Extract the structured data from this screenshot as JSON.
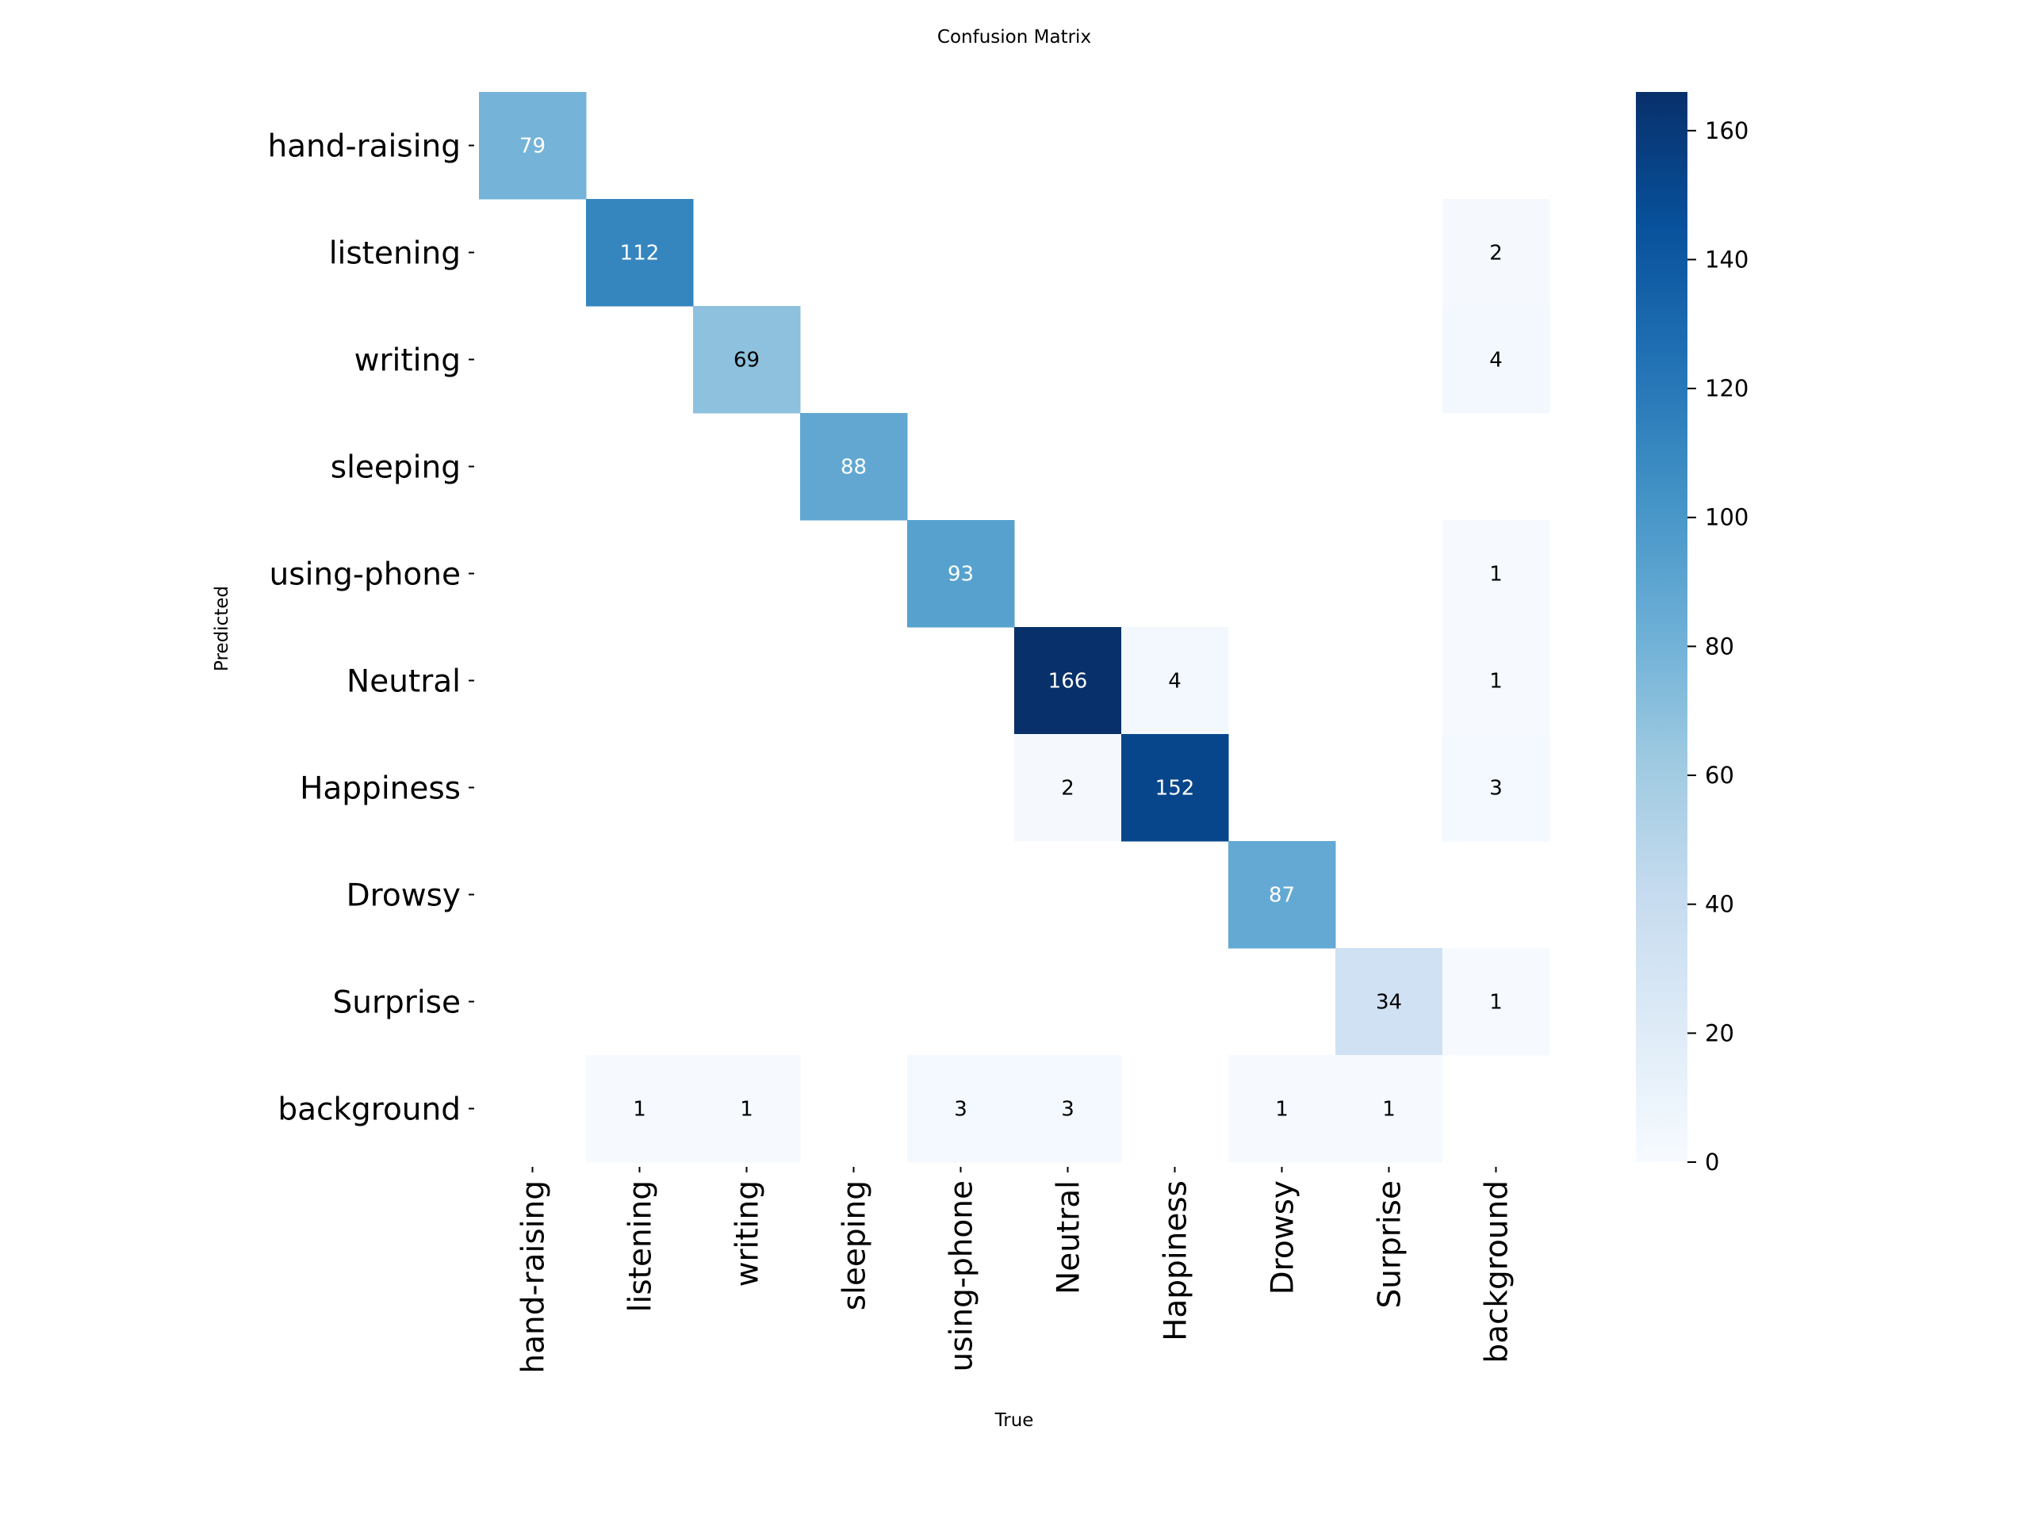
{
  "chart_data": {
    "type": "heatmap",
    "title": "Confusion Matrix",
    "xlabel": "True",
    "ylabel": "Predicted",
    "row_labels": [
      "hand-raising",
      "listening",
      "writing",
      "sleeping",
      "using-phone",
      "Neutral",
      "Happiness",
      "Drowsy",
      "Surprise",
      "background"
    ],
    "col_labels": [
      "hand-raising",
      "listening",
      "writing",
      "sleeping",
      "using-phone",
      "Neutral",
      "Happiness",
      "Drowsy",
      "Surprise",
      "background"
    ],
    "matrix": [
      [
        79,
        0,
        0,
        0,
        0,
        0,
        0,
        0,
        0,
        0
      ],
      [
        0,
        112,
        0,
        0,
        0,
        0,
        0,
        0,
        0,
        2
      ],
      [
        0,
        0,
        69,
        0,
        0,
        0,
        0,
        0,
        0,
        4
      ],
      [
        0,
        0,
        0,
        88,
        0,
        0,
        0,
        0,
        0,
        0
      ],
      [
        0,
        0,
        0,
        0,
        93,
        0,
        0,
        0,
        0,
        1
      ],
      [
        0,
        0,
        0,
        0,
        0,
        166,
        4,
        0,
        0,
        1
      ],
      [
        0,
        0,
        0,
        0,
        0,
        2,
        152,
        0,
        0,
        3
      ],
      [
        0,
        0,
        0,
        0,
        0,
        0,
        0,
        87,
        0,
        0
      ],
      [
        0,
        0,
        0,
        0,
        0,
        0,
        0,
        0,
        34,
        1
      ],
      [
        0,
        1,
        1,
        0,
        3,
        3,
        0,
        1,
        1,
        0
      ]
    ],
    "colormap": "Blues",
    "vmin": 0,
    "vmax": 166,
    "colorbar_ticks": [
      "0",
      "20",
      "40",
      "60",
      "80",
      "100",
      "120",
      "140",
      "160"
    ],
    "colorbar_tick_values": [
      0,
      20,
      40,
      60,
      80,
      100,
      120,
      140,
      160
    ],
    "zero_cells_blank": true
  }
}
